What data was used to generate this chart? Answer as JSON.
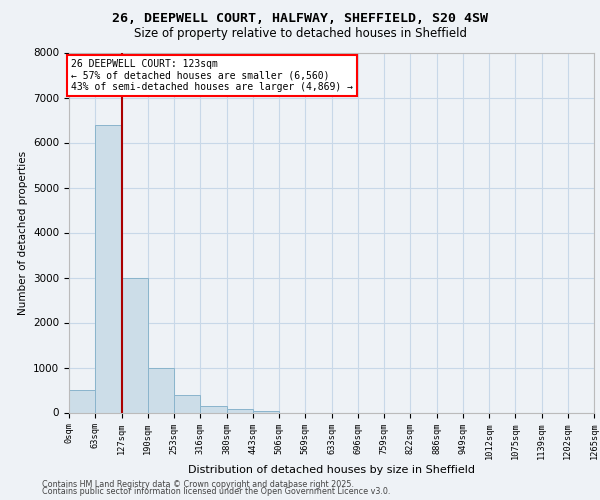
{
  "title_line1": "26, DEEPWELL COURT, HALFWAY, SHEFFIELD, S20 4SW",
  "title_line2": "Size of property relative to detached houses in Sheffield",
  "xlabel": "Distribution of detached houses by size in Sheffield",
  "ylabel": "Number of detached properties",
  "property_label": "26 DEEPWELL COURT: 123sqm",
  "pct_smaller": "← 57% of detached houses are smaller (6,560)",
  "pct_larger": "43% of semi-detached houses are larger (4,869) →",
  "footnote1": "Contains HM Land Registry data © Crown copyright and database right 2025.",
  "footnote2": "Contains public sector information licensed under the Open Government Licence v3.0.",
  "bin_edges": [
    0,
    63,
    127,
    190,
    253,
    316,
    380,
    443,
    506,
    569,
    633,
    696,
    759,
    822,
    886,
    949,
    1012,
    1075,
    1139,
    1202,
    1265
  ],
  "bin_counts": [
    500,
    6400,
    3000,
    1000,
    400,
    150,
    70,
    30,
    0,
    0,
    0,
    0,
    0,
    0,
    0,
    0,
    0,
    0,
    0,
    0
  ],
  "bar_color": "#ccdde8",
  "bar_edge_color": "#8ab4cc",
  "vline_color": "#aa0000",
  "vline_x": 127,
  "grid_color": "#c8d8e8",
  "background_color": "#eef2f6",
  "ylim": [
    0,
    8000
  ],
  "yticks": [
    0,
    1000,
    2000,
    3000,
    4000,
    5000,
    6000,
    7000,
    8000
  ]
}
